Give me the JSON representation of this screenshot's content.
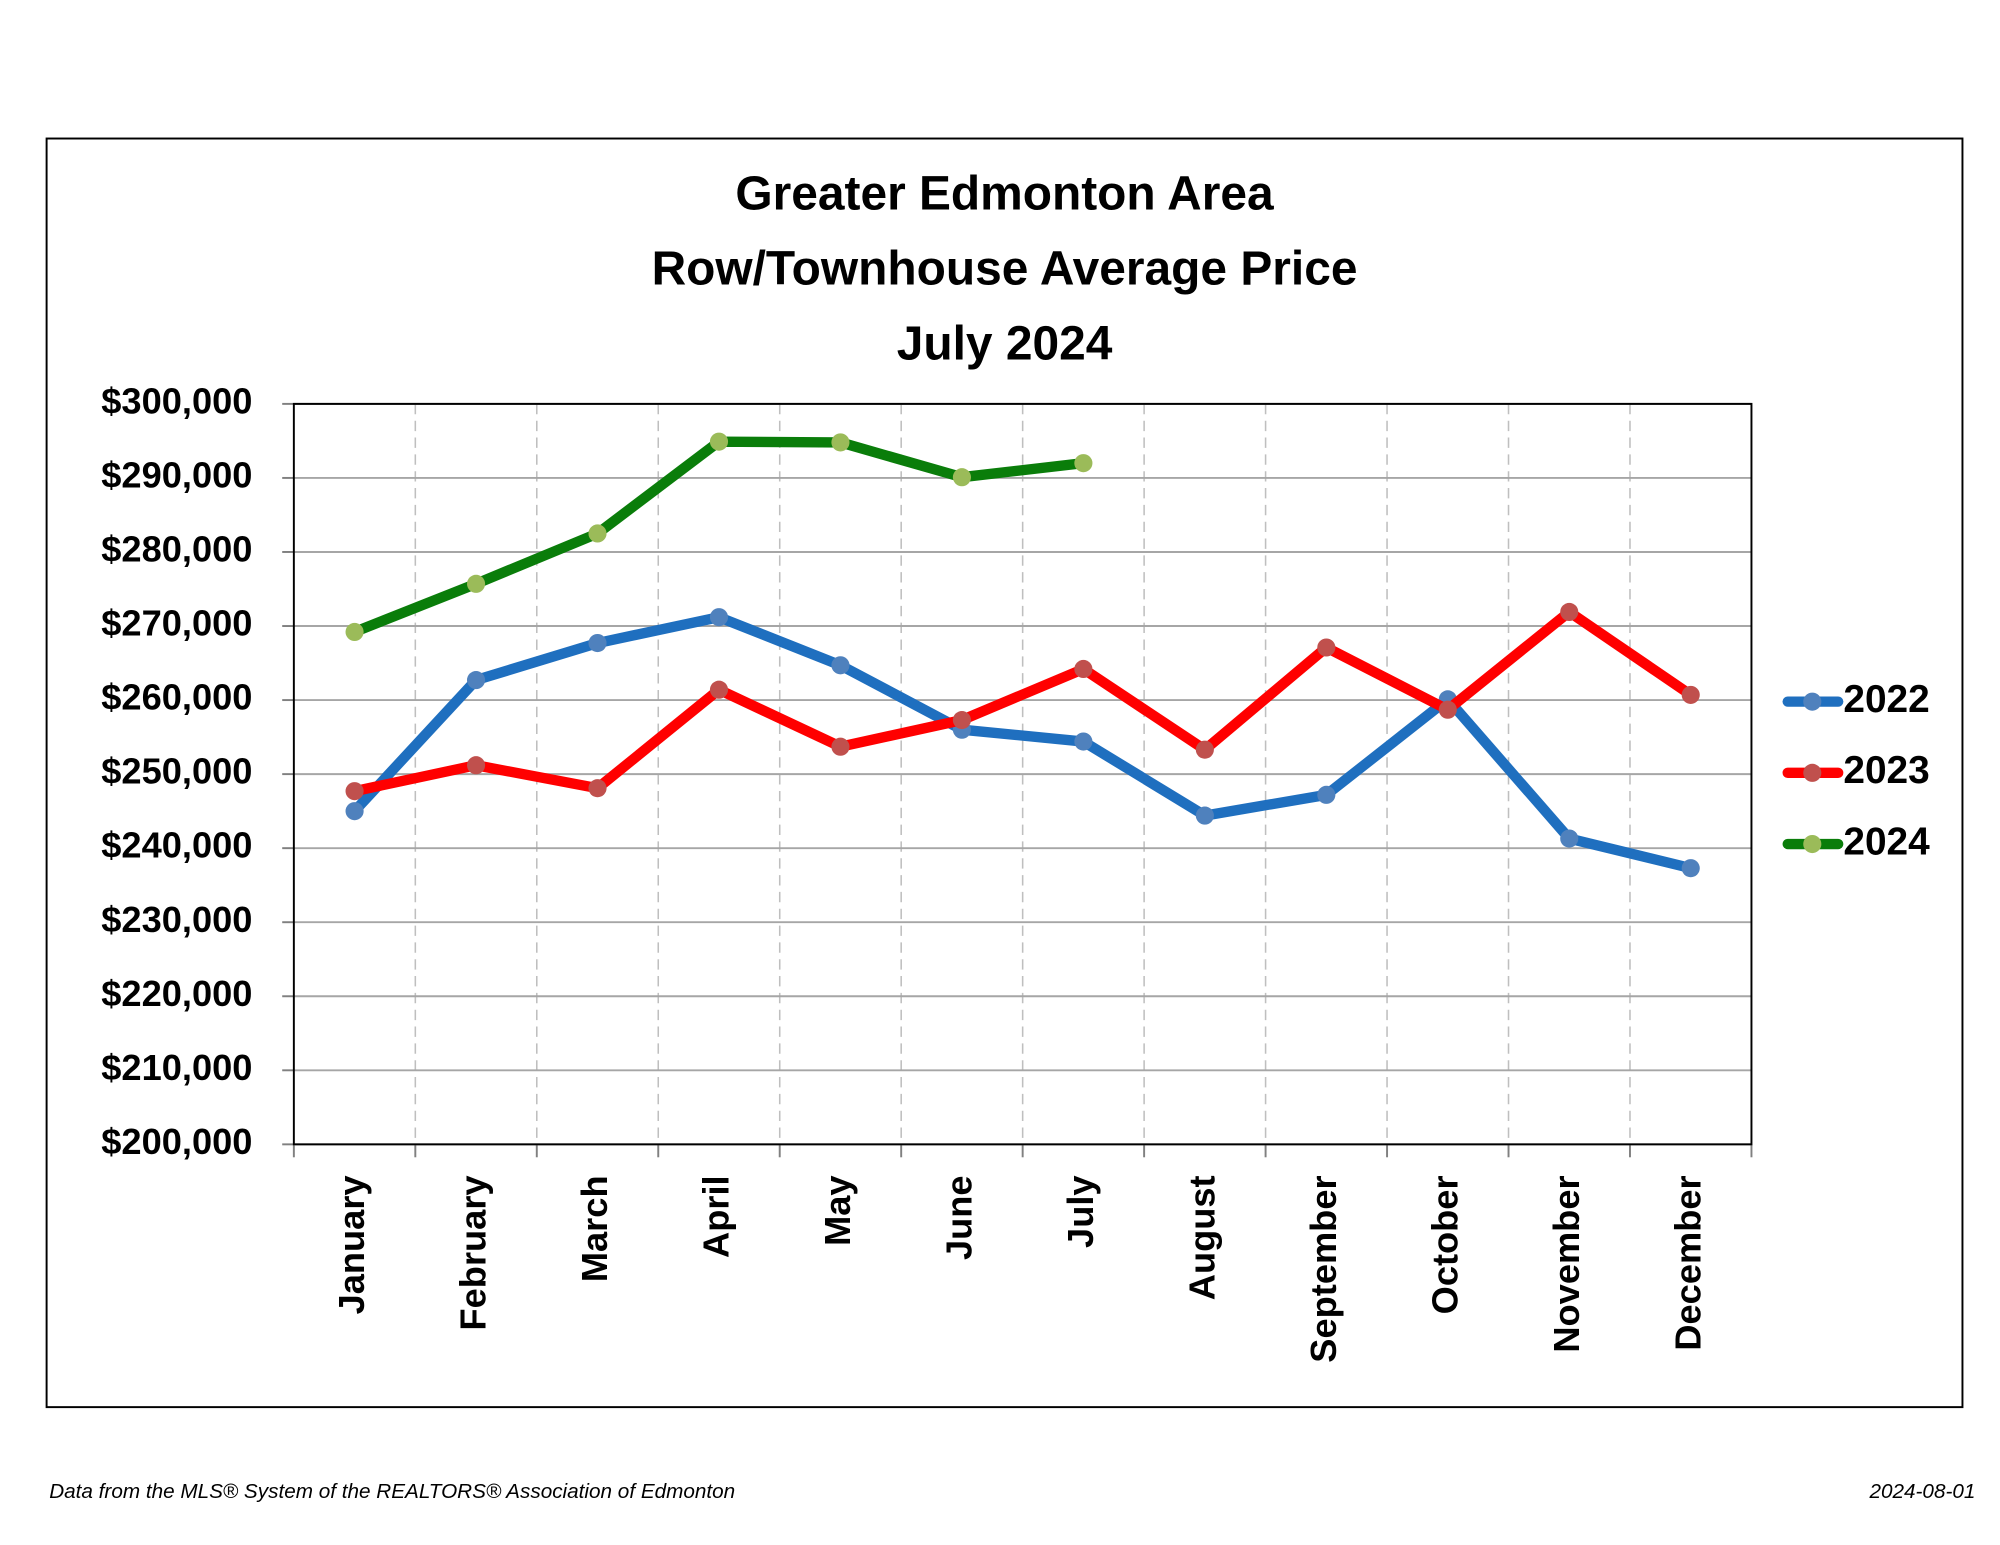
{
  "chart_data": {
    "type": "line",
    "title": [
      "Greater Edmonton Area",
      "Row/Townhouse Average Price",
      "July 2024"
    ],
    "categories": [
      "January",
      "February",
      "March",
      "April",
      "May",
      "June",
      "July",
      "August",
      "September",
      "October",
      "November",
      "December"
    ],
    "series": [
      {
        "name": "2022",
        "color": "#1f6fbf",
        "marker_color": "#4f81bd",
        "values": [
          245000,
          262700,
          267700,
          271200,
          264700,
          256000,
          254400,
          244400,
          247200,
          260100,
          241300,
          237300
        ]
      },
      {
        "name": "2023",
        "color": "#ff0000",
        "marker_color": "#c0504d",
        "values": [
          247700,
          251200,
          248100,
          261400,
          253700,
          257300,
          264200,
          253300,
          267100,
          258700,
          271900,
          260700
        ]
      },
      {
        "name": "2024",
        "color": "#0a7d0a",
        "marker_color": "#9bbb59",
        "values": [
          269200,
          275700,
          282500,
          294900,
          294800,
          290100,
          292000,
          null,
          null,
          null,
          null,
          null
        ]
      }
    ],
    "ylim": [
      200000,
      300000
    ],
    "yticks": [
      {
        "value": 200000,
        "label": "$200,000"
      },
      {
        "value": 210000,
        "label": "$210,000"
      },
      {
        "value": 220000,
        "label": "$220,000"
      },
      {
        "value": 230000,
        "label": "$230,000"
      },
      {
        "value": 240000,
        "label": "$240,000"
      },
      {
        "value": 250000,
        "label": "$250,000"
      },
      {
        "value": 260000,
        "label": "$260,000"
      },
      {
        "value": 270000,
        "label": "$270,000"
      },
      {
        "value": 280000,
        "label": "$280,000"
      },
      {
        "value": 290000,
        "label": "$290,000"
      },
      {
        "value": 300000,
        "label": "$300,000"
      }
    ],
    "grid": true,
    "legend": "right",
    "source": "Data from the MLS® System of the REALTORS® Association of Edmonton",
    "date": "2024-08-01"
  }
}
